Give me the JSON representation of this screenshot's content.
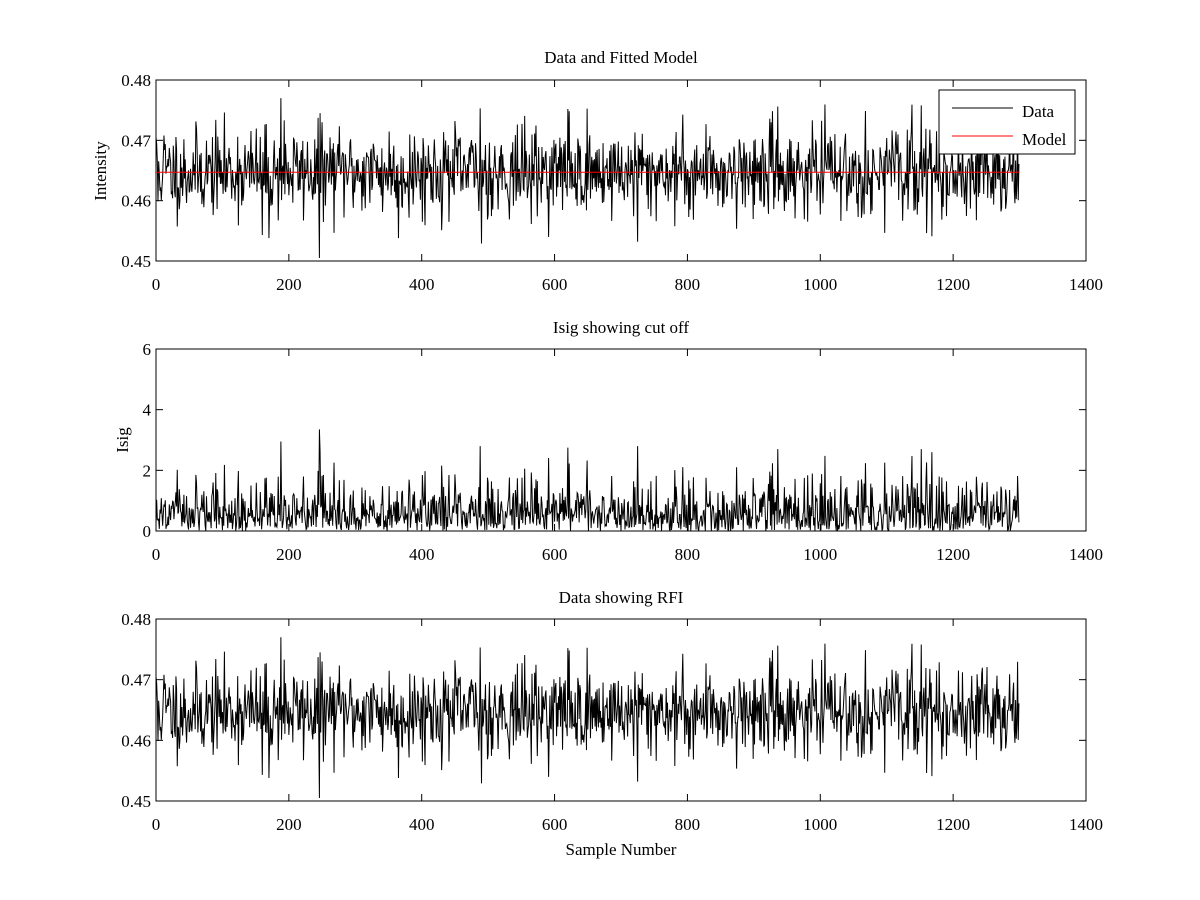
{
  "chart_data": [
    {
      "type": "line",
      "title": "Data and Fitted Model",
      "xlabel": "",
      "ylabel": "Intensity",
      "xlim": [
        0,
        1400
      ],
      "ylim": [
        0.45,
        0.48
      ],
      "xticks": [
        0,
        200,
        400,
        600,
        800,
        1000,
        1200,
        1400
      ],
      "xtick_labels": [
        "0",
        "200",
        "400",
        "600",
        "800",
        "1000",
        "1200",
        "1400"
      ],
      "yticks": [
        0.45,
        0.46,
        0.47,
        0.48
      ],
      "ytick_labels": [
        "0.45",
        "0.46",
        "0.47",
        "0.48"
      ],
      "grid": false,
      "legend_position": "top-right",
      "series": [
        {
          "name": "Data",
          "color": "#000000",
          "kind": "noise",
          "n": 1300,
          "mean": 0.4648,
          "sd": 0.0036,
          "min": 0.4505,
          "max": 0.477,
          "seed": 11,
          "spikes": [
            [
              0,
              0.4705
            ],
            [
              3,
              0.4599
            ],
            [
              8,
              0.4601
            ],
            [
              12,
              0.4708
            ],
            [
              160,
              0.4543
            ],
            [
              170,
              0.4538
            ],
            [
              188,
              0.477
            ],
            [
              193,
              0.4733
            ],
            [
              246,
              0.4505
            ],
            [
              247,
              0.4745
            ],
            [
              365,
              0.4538
            ],
            [
              488,
              0.4753
            ],
            [
              490,
              0.4529
            ],
            [
              620,
              0.4752
            ],
            [
              725,
              0.4532
            ],
            [
              936,
              0.4756
            ],
            [
              1152,
              0.4758
            ],
            [
              1168,
              0.4541
            ]
          ]
        },
        {
          "name": "Model",
          "color": "#ff0000",
          "kind": "line",
          "x": [
            0,
            1300
          ],
          "y": [
            0.4647,
            0.4647
          ]
        }
      ]
    },
    {
      "type": "line",
      "title": "Isig showing cut off",
      "xlabel": "",
      "ylabel": "Isig",
      "xlim": [
        0,
        1400
      ],
      "ylim": [
        0,
        6
      ],
      "xticks": [
        0,
        200,
        400,
        600,
        800,
        1000,
        1200,
        1400
      ],
      "xtick_labels": [
        "0",
        "200",
        "400",
        "600",
        "800",
        "1000",
        "1200",
        "1400"
      ],
      "yticks": [
        0,
        2,
        4,
        6
      ],
      "ytick_labels": [
        "0",
        "2",
        "4",
        "6"
      ],
      "grid": false,
      "series": [
        {
          "color": "#000000",
          "kind": "abs_noise",
          "n": 1300,
          "sd": 0.8,
          "min": 0,
          "max": 3.35,
          "seed": 11,
          "spikes": [
            [
              188,
              2.95
            ],
            [
              246,
              3.35
            ],
            [
              247,
              2.6
            ],
            [
              488,
              2.8
            ],
            [
              620,
              2.75
            ],
            [
              725,
              2.8
            ],
            [
              936,
              2.7
            ],
            [
              1152,
              2.7
            ],
            [
              1168,
              2.6
            ]
          ]
        }
      ]
    },
    {
      "type": "line",
      "title": "Data showing RFI",
      "xlabel": "Sample Number",
      "ylabel": "",
      "xlim": [
        0,
        1400
      ],
      "ylim": [
        0.45,
        0.48
      ],
      "xticks": [
        0,
        200,
        400,
        600,
        800,
        1000,
        1200,
        1400
      ],
      "xtick_labels": [
        "0",
        "200",
        "400",
        "600",
        "800",
        "1000",
        "1200",
        "1400"
      ],
      "yticks": [
        0.45,
        0.46,
        0.47,
        0.48
      ],
      "ytick_labels": [
        "0.45",
        "0.46",
        "0.47",
        "0.48"
      ],
      "grid": false,
      "series": [
        {
          "color": "#000000",
          "kind": "noise",
          "n": 1300,
          "mean": 0.4648,
          "sd": 0.0036,
          "min": 0.4505,
          "max": 0.477,
          "seed": 11,
          "spikes": [
            [
              0,
              0.4705
            ],
            [
              3,
              0.4599
            ],
            [
              8,
              0.4601
            ],
            [
              12,
              0.4708
            ],
            [
              160,
              0.4543
            ],
            [
              170,
              0.4538
            ],
            [
              188,
              0.477
            ],
            [
              193,
              0.4733
            ],
            [
              246,
              0.4505
            ],
            [
              247,
              0.4745
            ],
            [
              365,
              0.4538
            ],
            [
              488,
              0.4753
            ],
            [
              490,
              0.4529
            ],
            [
              620,
              0.4752
            ],
            [
              725,
              0.4532
            ],
            [
              936,
              0.4756
            ],
            [
              1152,
              0.4758
            ],
            [
              1168,
              0.4541
            ]
          ]
        }
      ]
    }
  ]
}
